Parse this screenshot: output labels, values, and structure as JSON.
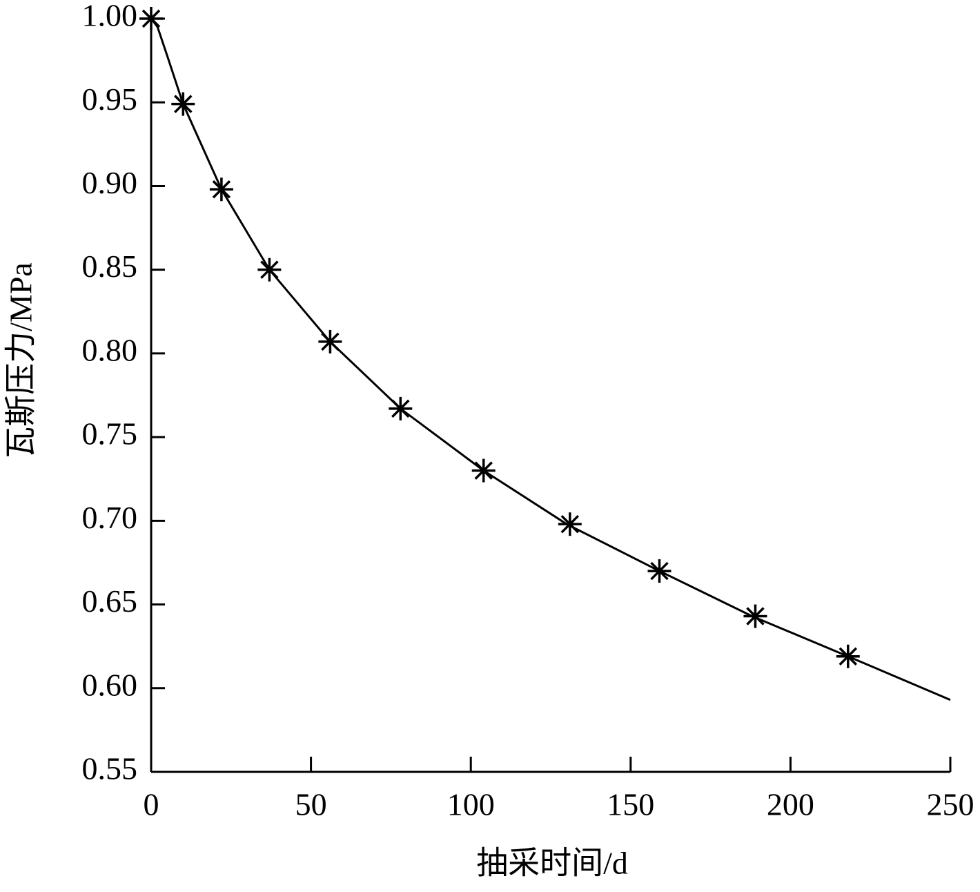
{
  "chart_data": {
    "type": "line",
    "x_label": "抽采时间/d",
    "y_label": "瓦斯压力/MPa",
    "xlim": [
      0,
      250
    ],
    "xticks": [
      0,
      50,
      100,
      150,
      200,
      250
    ],
    "ylim": [
      0.55,
      1.0
    ],
    "yticks": [
      {
        "value": 0.55,
        "label": "0.55"
      },
      {
        "value": 0.6,
        "label": "0.60"
      },
      {
        "value": 0.65,
        "label": "0.65"
      },
      {
        "value": 0.7,
        "label": "0.70"
      },
      {
        "value": 0.75,
        "label": "0.75"
      },
      {
        "value": 0.8,
        "label": "0.80"
      },
      {
        "value": 0.85,
        "label": "0.85"
      },
      {
        "value": 0.9,
        "label": "0.90"
      },
      {
        "value": 0.95,
        "label": "0.95"
      },
      {
        "value": 1.0,
        "label": "1.00"
      }
    ],
    "series": [
      {
        "mode": "line",
        "color": "#000000",
        "x": [
          0,
          2,
          5,
          10,
          22,
          37,
          56,
          78,
          104,
          130,
          159,
          188,
          218,
          250
        ],
        "values": [
          1.0,
          0.995,
          0.978,
          0.949,
          0.898,
          0.85,
          0.807,
          0.767,
          0.73,
          0.698,
          0.67,
          0.643,
          0.619,
          0.593
        ]
      },
      {
        "mode": "markers",
        "marker": "asterisk",
        "color": "#000000",
        "x": [
          0,
          10,
          22,
          37,
          56,
          78,
          104,
          131,
          159,
          189,
          218
        ],
        "values": [
          1.0,
          0.949,
          0.898,
          0.85,
          0.807,
          0.767,
          0.73,
          0.698,
          0.67,
          0.643,
          0.619
        ]
      }
    ]
  }
}
